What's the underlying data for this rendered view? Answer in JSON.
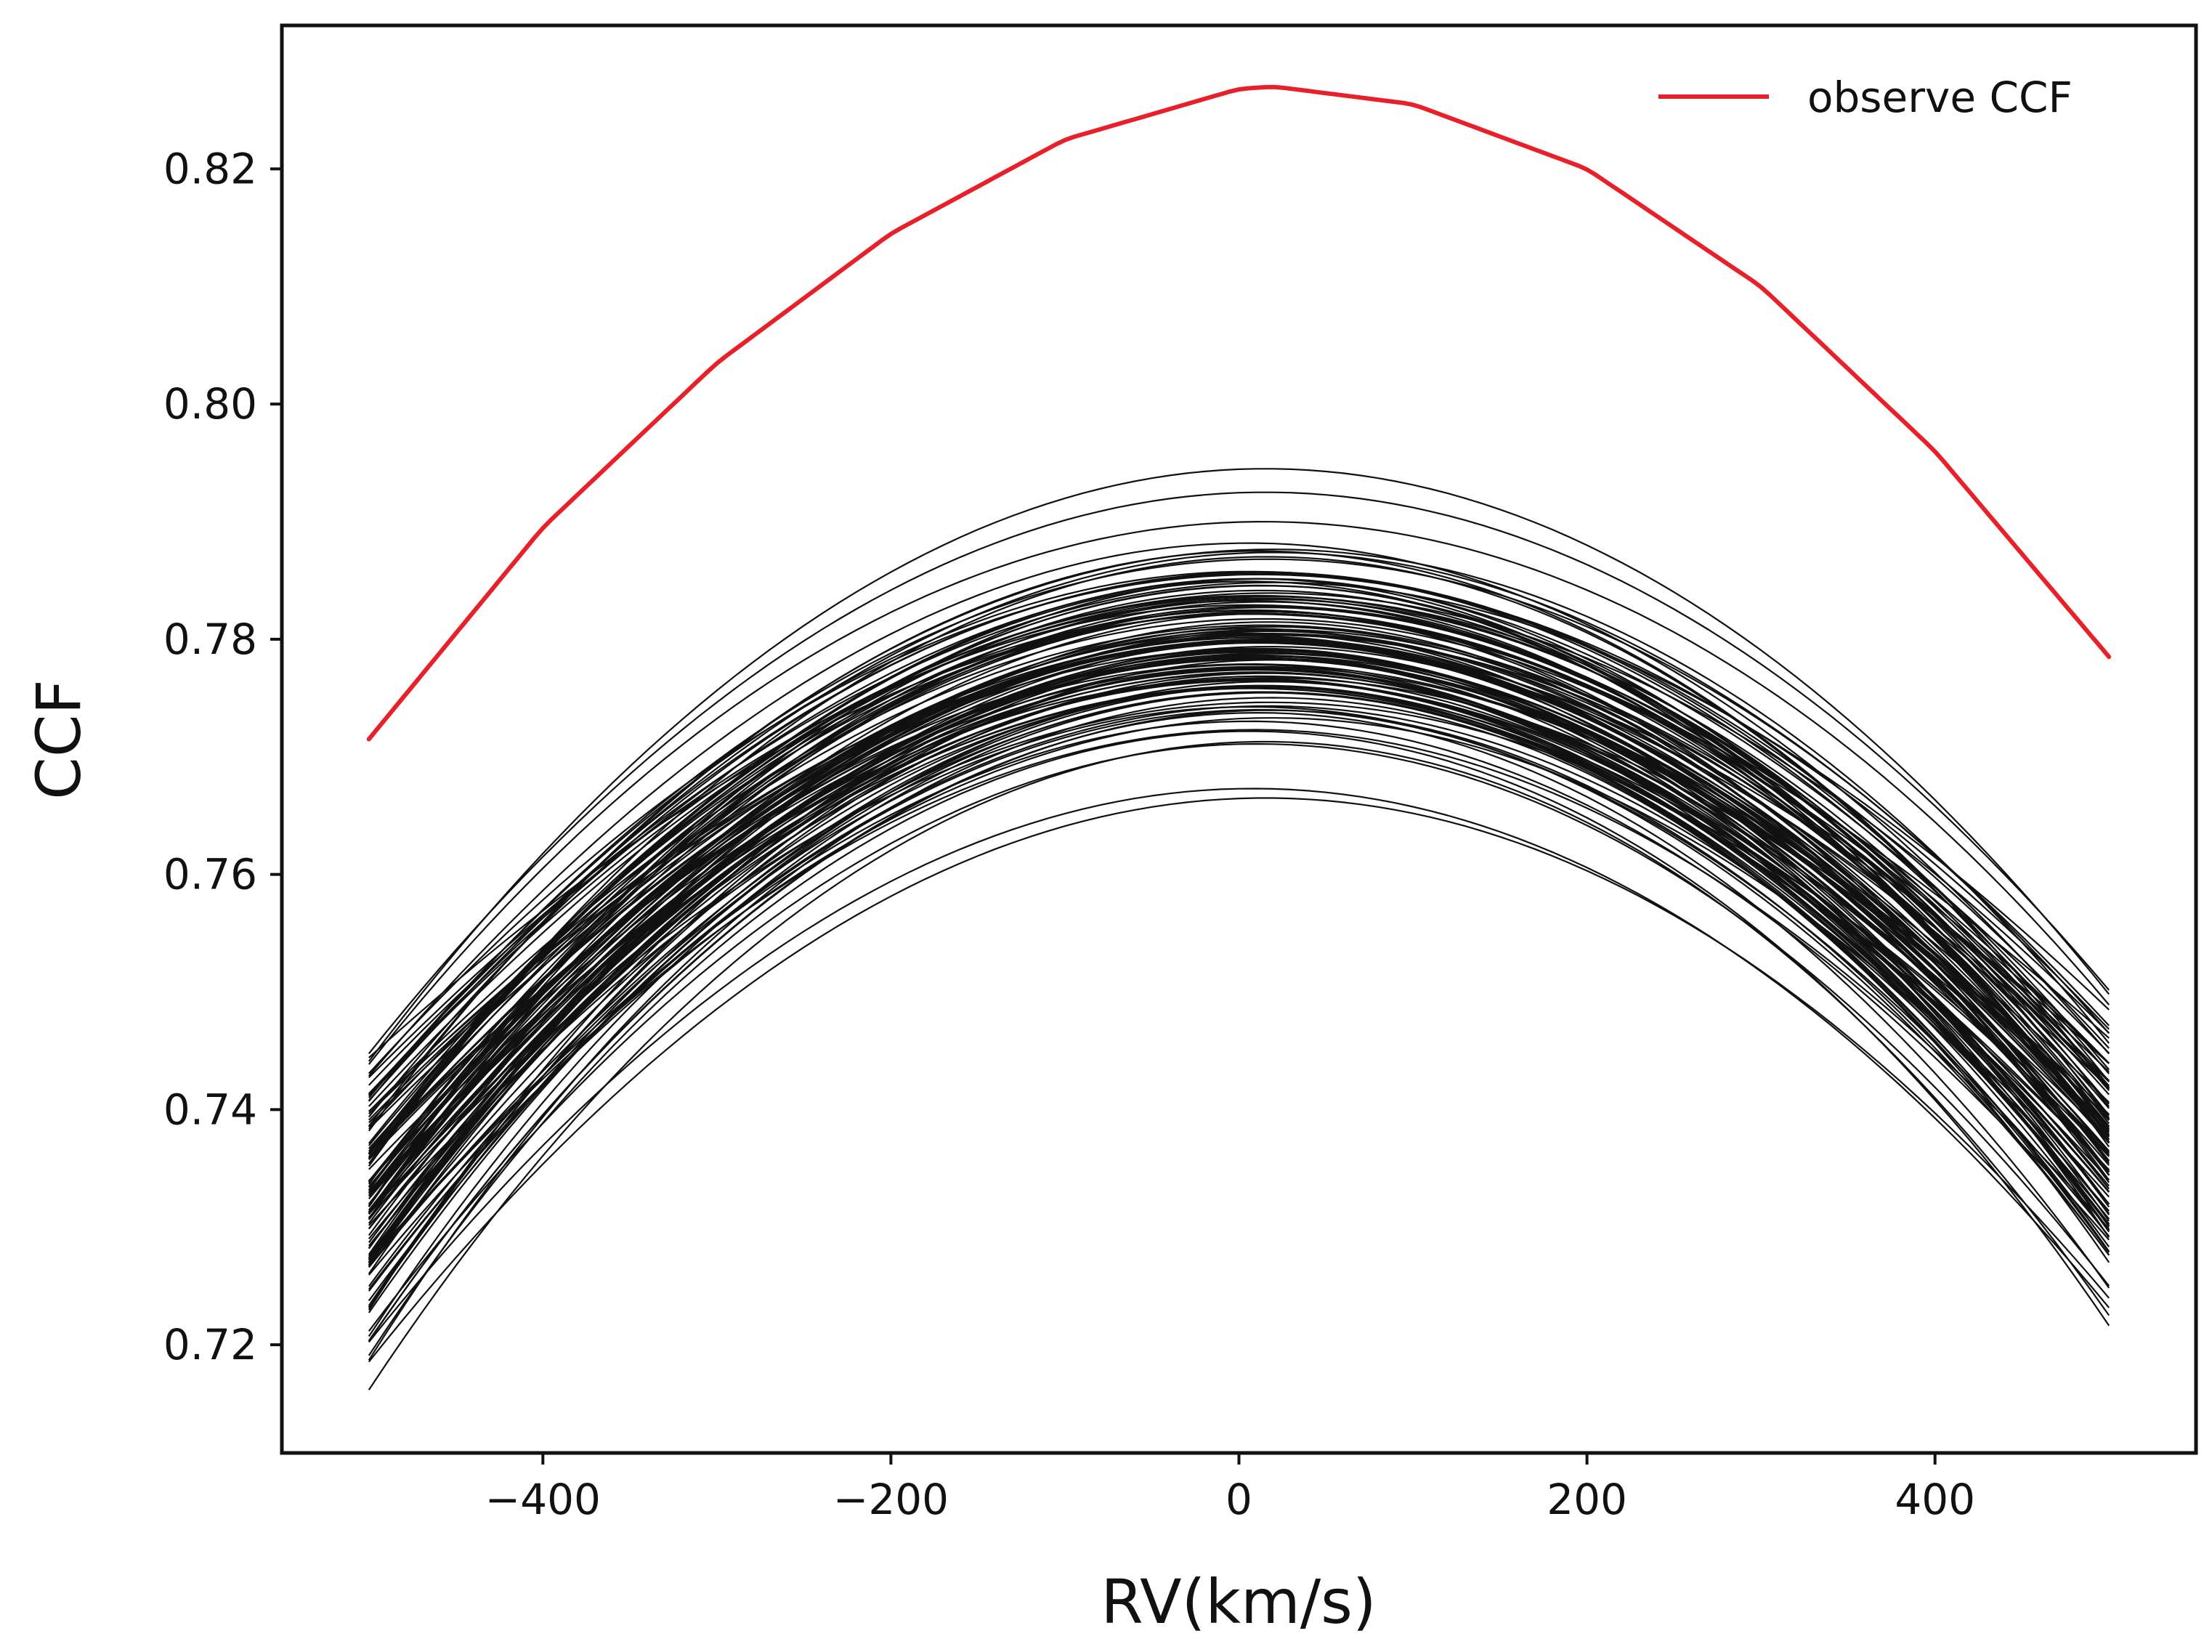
{
  "chart_data": {
    "type": "line",
    "title": "",
    "xlabel": "RV(km/s)",
    "ylabel": "CCF",
    "xlim": [
      -550,
      550
    ],
    "ylim": [
      0.7108,
      0.8322
    ],
    "xticks": [
      -400,
      -200,
      0,
      200,
      400
    ],
    "xtick_labels": [
      "−400",
      "−200",
      "0",
      "200",
      "400"
    ],
    "yticks": [
      0.72,
      0.74,
      0.76,
      0.78,
      0.8,
      0.82
    ],
    "ytick_labels": [
      "0.72",
      "0.74",
      "0.76",
      "0.78",
      "0.80",
      "0.82"
    ],
    "grid": false,
    "legend": {
      "position": "top-right",
      "entries": [
        {
          "label": "observe CCF",
          "color": "#e8202a"
        }
      ]
    },
    "colors": {
      "observed": "#e8202a",
      "models": "#111111",
      "axes": "#111111",
      "background": "#ffffff"
    },
    "x_range": [
      -500,
      500
    ],
    "observed_series": {
      "name": "observe CCF",
      "x": [
        -500,
        -400,
        -300,
        -200,
        -100,
        0,
        20,
        100,
        200,
        300,
        400,
        500
      ],
      "y": [
        0.7715,
        0.7895,
        0.8035,
        0.8145,
        0.8225,
        0.8268,
        0.827,
        0.8255,
        0.82,
        0.81,
        0.796,
        0.7785
      ]
    },
    "model_series": {
      "count": 120,
      "shape": "x in km/s, y = peak - k*((x-center)/500)^2 - m*((x-center)/500)^4",
      "peak_range": [
        0.7662,
        0.7945
      ],
      "center_range": [
        5,
        20
      ],
      "curvature_range": [
        0.0405,
        0.0505
      ],
      "quartic_range": [
        -0.004,
        0.004
      ],
      "named_samples": [
        {
          "peak": 0.7945,
          "center": 15,
          "curvature": 0.0475
        },
        {
          "peak": 0.7925,
          "center": 15,
          "curvature": 0.045
        },
        {
          "peak": 0.7875,
          "center": 10,
          "curvature": 0.047
        },
        {
          "peak": 0.7835,
          "center": 12,
          "curvature": 0.048
        },
        {
          "peak": 0.78,
          "center": 14,
          "curvature": 0.047
        },
        {
          "peak": 0.7772,
          "center": 10,
          "curvature": 0.0455
        },
        {
          "peak": 0.774,
          "center": 12,
          "curvature": 0.047
        },
        {
          "peak": 0.7711,
          "center": 10,
          "curvature": 0.048
        },
        {
          "peak": 0.7673,
          "center": 8,
          "curvature": 0.0456
        },
        {
          "peak": 0.7665,
          "center": 15,
          "curvature": 0.0452
        }
      ]
    }
  }
}
